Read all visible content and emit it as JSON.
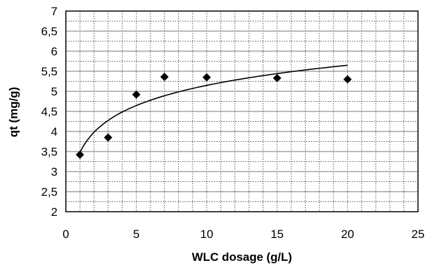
{
  "chart_data": {
    "type": "scatter",
    "title": "",
    "xlabel": "WLC dosage (g/L)",
    "ylabel": "qt (mg/g)",
    "xlim": [
      0,
      25
    ],
    "ylim": [
      2,
      7
    ],
    "x_ticks": [
      "0",
      "5",
      "10",
      "15",
      "20",
      "25"
    ],
    "y_ticks": [
      "2",
      "2,5",
      "3",
      "3,5",
      "4",
      "4,5",
      "5",
      "5,5",
      "6",
      "6,5",
      "7"
    ],
    "grid": true,
    "series": [
      {
        "x": [
          1,
          3,
          5,
          7,
          10,
          15,
          20
        ],
        "y": [
          3.42,
          3.85,
          4.92,
          5.36,
          5.35,
          5.33,
          5.3
        ],
        "marker": "diamond",
        "color": "#000000"
      }
    ],
    "trendline": {
      "type": "logarithmic",
      "x_range": [
        1,
        20
      ],
      "color": "#000000"
    }
  }
}
